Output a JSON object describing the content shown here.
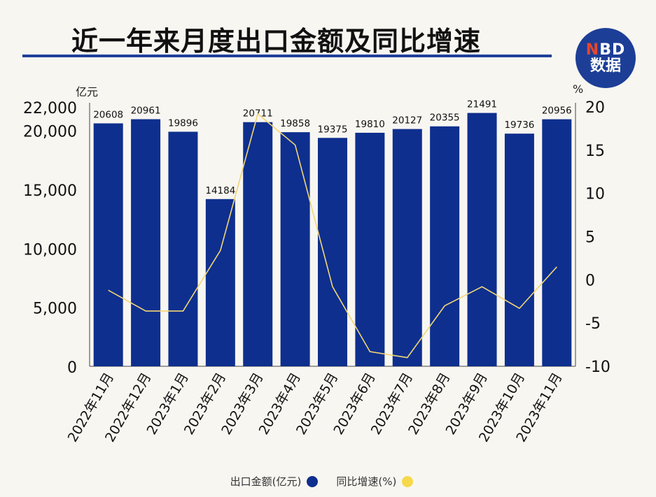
{
  "title": "近一年来月度出口金额及同比增速",
  "logo": {
    "line1_n": "N",
    "line1_rest": "BD",
    "line2": "数据"
  },
  "left_unit": "亿元",
  "right_unit": "%",
  "colors": {
    "bar": "#0e2f8e",
    "line": "#f2d675",
    "title_rule": "#1f3f9a"
  },
  "chart_data": {
    "type": "bar",
    "categories": [
      "2022年11月",
      "2022年12月",
      "2023年1月",
      "2023年2月",
      "2023年3月",
      "2023年4月",
      "2023年5月",
      "2023年6月",
      "2023年7月",
      "2023年8月",
      "2023年9月",
      "2023年10月",
      "2023年11月"
    ],
    "series": [
      {
        "name": "出口金额(亿元)",
        "type": "bar",
        "axis": "left",
        "values": [
          20608,
          20961,
          19896,
          14184,
          20711,
          19858,
          19375,
          19810,
          20127,
          20355,
          21491,
          19736,
          20956
        ]
      },
      {
        "name": "同比增速(%)",
        "type": "line",
        "axis": "right",
        "values": [
          -1.2,
          -3.6,
          -3.6,
          3.4,
          19.2,
          15.6,
          -0.8,
          -8.3,
          -9.0,
          -3.0,
          -0.8,
          -3.3,
          1.5
        ]
      }
    ],
    "left_axis": {
      "ticks": [
        0,
        5000,
        10000,
        15000,
        20000,
        22000
      ],
      "tick_labels": [
        "0",
        "5,000",
        "10,000",
        "15,000",
        "20,000",
        "22,000"
      ],
      "ylim": [
        0,
        22000
      ]
    },
    "right_axis": {
      "ticks": [
        -10,
        -5,
        0,
        5,
        10,
        15,
        20
      ],
      "tick_labels": [
        "-10",
        "-5",
        "0",
        "5",
        "10",
        "15",
        "20"
      ],
      "ylim": [
        -10,
        20
      ]
    },
    "legend_position": "bottom-center",
    "grid": false
  }
}
